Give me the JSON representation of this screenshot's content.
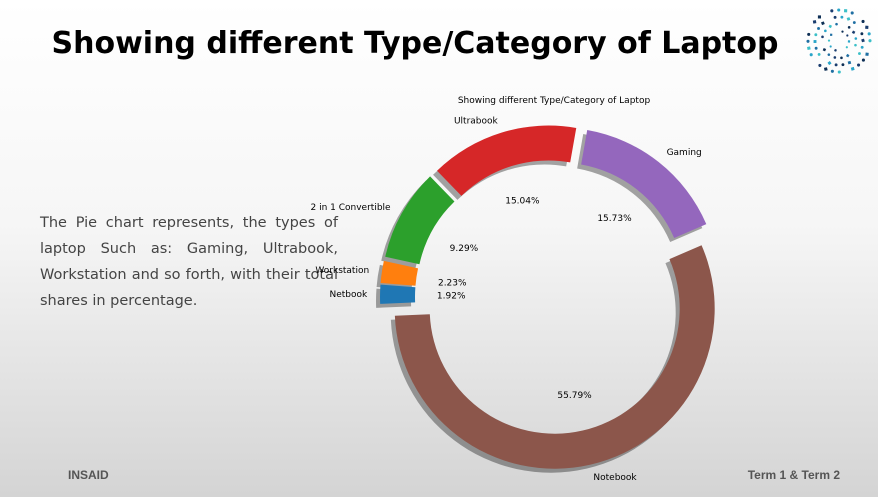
{
  "slide": {
    "title": "Showing different Type/Category of Laptop",
    "description": "The Pie chart represents, the types of laptop Such as: Gaming, Ultrabook, Workstation and so forth, with their total shares in percentage.",
    "footer_left": "INSAID",
    "footer_right": "Term 1 & Term 2"
  },
  "chart_data": {
    "type": "pie",
    "style": "donut",
    "title": "Showing different Type/Category of Laptop",
    "categories": [
      "Ultrabook",
      "2 in 1 Convertible",
      "Workstation",
      "Netbook",
      "Notebook",
      "Gaming"
    ],
    "values": [
      15.04,
      9.29,
      2.23,
      1.92,
      55.79,
      15.73
    ],
    "value_labels": [
      "15.04%",
      "9.29%",
      "2.23%",
      "1.92%",
      "55.79%",
      "15.73%"
    ],
    "colors": [
      "#d62728",
      "#2ca02c",
      "#ff7f0e",
      "#1f77b4",
      "#8c564b",
      "#9467bd"
    ],
    "exploded": true,
    "shadow": true
  }
}
